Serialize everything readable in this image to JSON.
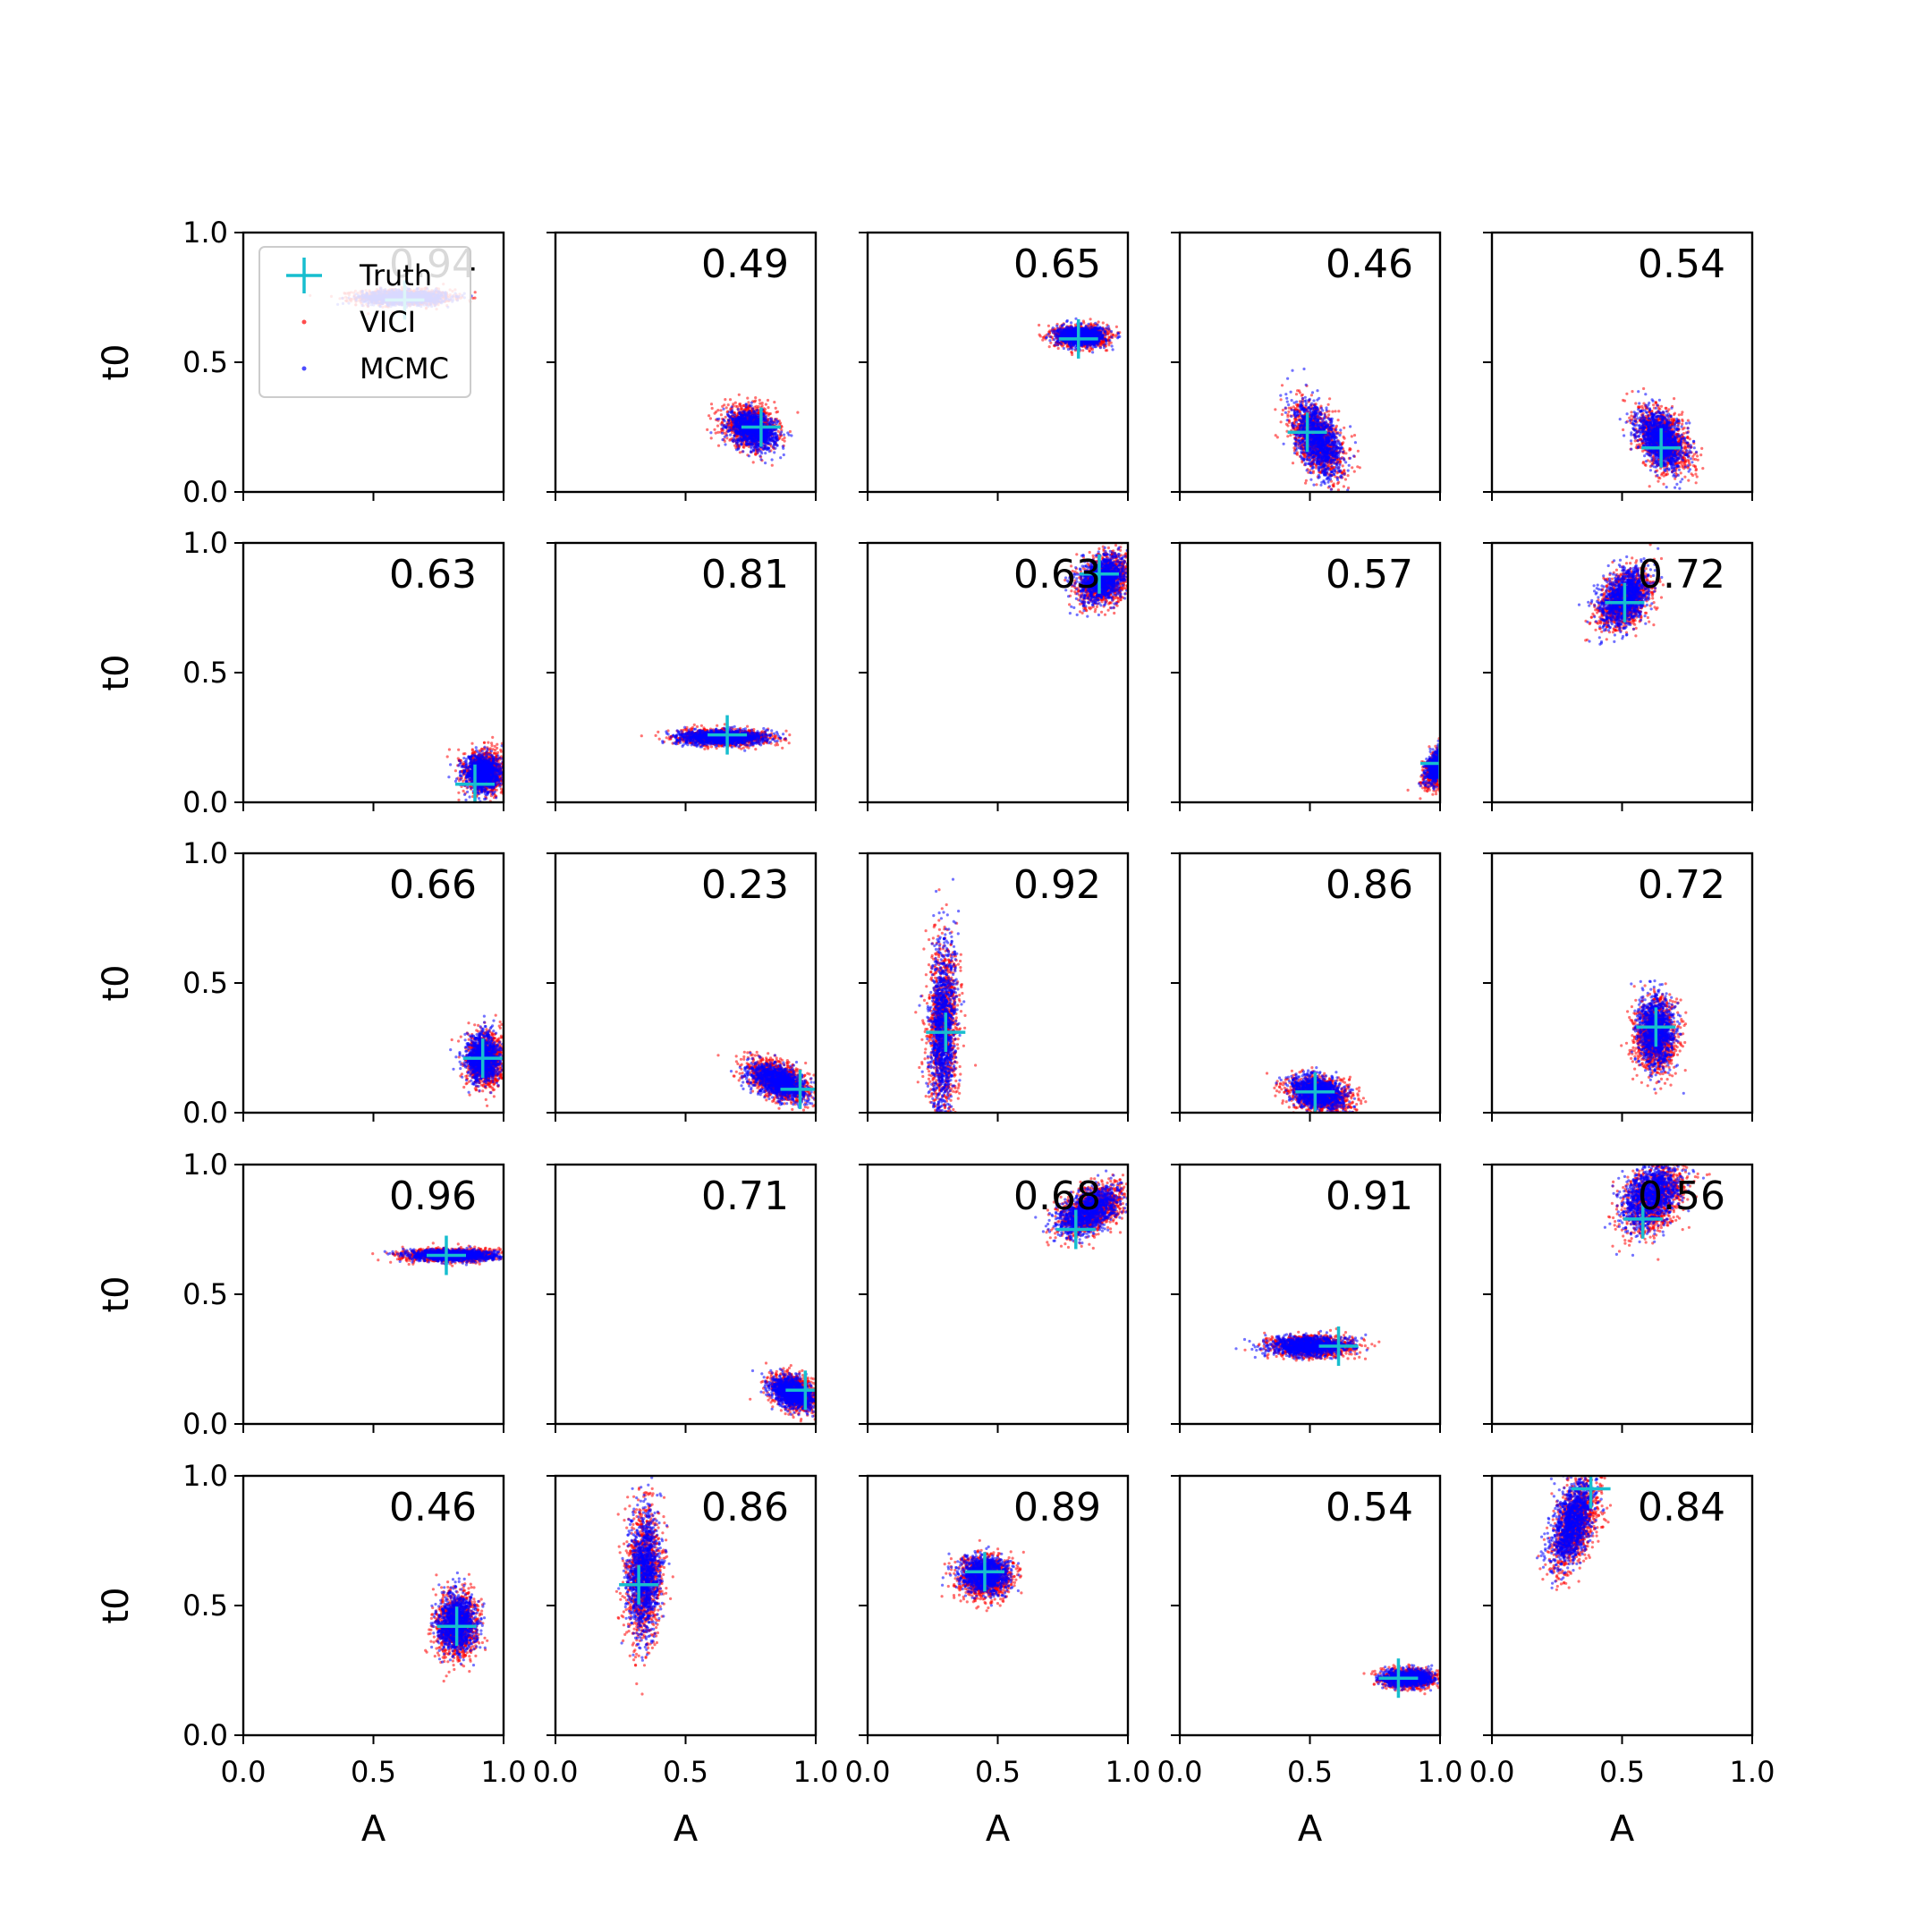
{
  "figure": {
    "xlabel": "A",
    "ylabel": "t0",
    "tick_labels": [
      "0.0",
      "0.5",
      "1.0"
    ],
    "legend": {
      "entries": [
        {
          "label": "Truth",
          "color": "#17becf",
          "marker": "plus"
        },
        {
          "label": "VICI",
          "color": "#ff0000",
          "marker": "dot"
        },
        {
          "label": "MCMC",
          "color": "#0000ff",
          "marker": "dot"
        }
      ]
    }
  },
  "chart_data": {
    "type": "scatter",
    "grid": false,
    "legend_placement": "upper-left of first panel",
    "xlim": [
      0,
      1
    ],
    "ylim": [
      0,
      1
    ],
    "colors": {
      "vici": "#ff0000",
      "mcmc": "#0000ff",
      "truth": "#17becf"
    },
    "panels": [
      {
        "label": "0.94",
        "truth": [
          0.62,
          0.74
        ],
        "vici": {
          "center": [
            0.62,
            0.75
          ],
          "spread": [
            0.09,
            0.015
          ],
          "rho": 0
        },
        "mcmc": {
          "center": [
            0.62,
            0.75
          ],
          "spread": [
            0.08,
            0.013
          ],
          "rho": 0
        }
      },
      {
        "label": "0.49",
        "truth": [
          0.79,
          0.25
        ],
        "vici": {
          "center": [
            0.75,
            0.25
          ],
          "spread": [
            0.05,
            0.04
          ],
          "rho": -0.2
        },
        "mcmc": {
          "center": [
            0.76,
            0.24
          ],
          "spread": [
            0.045,
            0.035
          ],
          "rho": -0.3
        }
      },
      {
        "label": "0.65",
        "truth": [
          0.81,
          0.59
        ],
        "vici": {
          "center": [
            0.82,
            0.6
          ],
          "spread": [
            0.05,
            0.02
          ],
          "rho": 0
        },
        "mcmc": {
          "center": [
            0.82,
            0.6
          ],
          "spread": [
            0.045,
            0.018
          ],
          "rho": 0
        }
      },
      {
        "label": "0.46",
        "truth": [
          0.49,
          0.23
        ],
        "vici": {
          "center": [
            0.53,
            0.2
          ],
          "spread": [
            0.05,
            0.07
          ],
          "rho": -0.5
        },
        "mcmc": {
          "center": [
            0.53,
            0.2
          ],
          "spread": [
            0.045,
            0.07
          ],
          "rho": -0.5
        }
      },
      {
        "label": "0.54",
        "truth": [
          0.65,
          0.17
        ],
        "vici": {
          "center": [
            0.66,
            0.2
          ],
          "spread": [
            0.05,
            0.06
          ],
          "rho": -0.4
        },
        "mcmc": {
          "center": [
            0.65,
            0.2
          ],
          "spread": [
            0.045,
            0.055
          ],
          "rho": -0.4
        }
      },
      {
        "label": "0.63",
        "truth": [
          0.89,
          0.07
        ],
        "vici": {
          "center": [
            0.93,
            0.12
          ],
          "spread": [
            0.04,
            0.04
          ],
          "rho": 0
        },
        "mcmc": {
          "center": [
            0.92,
            0.11
          ],
          "spread": [
            0.035,
            0.035
          ],
          "rho": 0
        }
      },
      {
        "label": "0.81",
        "truth": [
          0.66,
          0.26
        ],
        "vici": {
          "center": [
            0.65,
            0.25
          ],
          "spread": [
            0.09,
            0.015
          ],
          "rho": 0
        },
        "mcmc": {
          "center": [
            0.64,
            0.25
          ],
          "spread": [
            0.085,
            0.014
          ],
          "rho": 0
        }
      },
      {
        "label": "0.63",
        "truth": [
          0.89,
          0.88
        ],
        "vici": {
          "center": [
            0.91,
            0.86
          ],
          "spread": [
            0.05,
            0.05
          ],
          "rho": 0.3
        },
        "mcmc": {
          "center": [
            0.9,
            0.86
          ],
          "spread": [
            0.045,
            0.045
          ],
          "rho": 0.3
        }
      },
      {
        "label": "0.57",
        "truth": [
          1.0,
          0.15
        ],
        "vici": {
          "center": [
            1.0,
            0.14
          ],
          "spread": [
            0.03,
            0.04
          ],
          "rho": 0.5
        },
        "mcmc": {
          "center": [
            1.0,
            0.15
          ],
          "spread": [
            0.025,
            0.035
          ],
          "rho": 0.5
        }
      },
      {
        "label": "0.72",
        "truth": [
          0.51,
          0.77
        ],
        "vici": {
          "center": [
            0.51,
            0.78
          ],
          "spread": [
            0.05,
            0.055
          ],
          "rho": 0.4
        },
        "mcmc": {
          "center": [
            0.51,
            0.79
          ],
          "spread": [
            0.045,
            0.055
          ],
          "rho": 0.4
        }
      },
      {
        "label": "0.66",
        "truth": [
          0.92,
          0.21
        ],
        "vici": {
          "center": [
            0.93,
            0.2
          ],
          "spread": [
            0.035,
            0.05
          ],
          "rho": 0
        },
        "mcmc": {
          "center": [
            0.92,
            0.21
          ],
          "spread": [
            0.03,
            0.045
          ],
          "rho": 0
        }
      },
      {
        "label": "0.23",
        "truth": [
          0.94,
          0.09
        ],
        "vici": {
          "center": [
            0.86,
            0.12
          ],
          "spread": [
            0.06,
            0.04
          ],
          "rho": -0.5
        },
        "mcmc": {
          "center": [
            0.86,
            0.12
          ],
          "spread": [
            0.055,
            0.035
          ],
          "rho": -0.5
        }
      },
      {
        "label": "0.92",
        "truth": [
          0.3,
          0.31
        ],
        "vici": {
          "center": [
            0.29,
            0.33
          ],
          "spread": [
            0.03,
            0.17
          ],
          "rho": 0.1
        },
        "mcmc": {
          "center": [
            0.29,
            0.32
          ],
          "spread": [
            0.025,
            0.16
          ],
          "rho": 0.1
        }
      },
      {
        "label": "0.86",
        "truth": [
          0.52,
          0.08
        ],
        "vici": {
          "center": [
            0.54,
            0.07
          ],
          "spread": [
            0.06,
            0.035
          ],
          "rho": -0.3
        },
        "mcmc": {
          "center": [
            0.53,
            0.08
          ],
          "spread": [
            0.05,
            0.03
          ],
          "rho": -0.3
        }
      },
      {
        "label": "0.72",
        "truth": [
          0.63,
          0.33
        ],
        "vici": {
          "center": [
            0.63,
            0.3
          ],
          "spread": [
            0.04,
            0.07
          ],
          "rho": 0
        },
        "mcmc": {
          "center": [
            0.63,
            0.31
          ],
          "spread": [
            0.035,
            0.065
          ],
          "rho": 0
        }
      },
      {
        "label": "0.96",
        "truth": [
          0.78,
          0.65
        ],
        "vici": {
          "center": [
            0.8,
            0.65
          ],
          "spread": [
            0.09,
            0.012
          ],
          "rho": 0
        },
        "mcmc": {
          "center": [
            0.8,
            0.65
          ],
          "spread": [
            0.085,
            0.011
          ],
          "rho": 0
        }
      },
      {
        "label": "0.71",
        "truth": [
          0.96,
          0.13
        ],
        "vici": {
          "center": [
            0.92,
            0.12
          ],
          "spread": [
            0.045,
            0.035
          ],
          "rho": -0.4
        },
        "mcmc": {
          "center": [
            0.91,
            0.12
          ],
          "spread": [
            0.04,
            0.03
          ],
          "rho": -0.4
        }
      },
      {
        "label": "0.68",
        "truth": [
          0.8,
          0.75
        ],
        "vici": {
          "center": [
            0.86,
            0.82
          ],
          "spread": [
            0.06,
            0.05
          ],
          "rho": 0.5
        },
        "mcmc": {
          "center": [
            0.85,
            0.82
          ],
          "spread": [
            0.055,
            0.045
          ],
          "rho": 0.5
        }
      },
      {
        "label": "0.91",
        "truth": [
          0.61,
          0.3
        ],
        "vici": {
          "center": [
            0.51,
            0.3
          ],
          "spread": [
            0.08,
            0.02
          ],
          "rho": 0
        },
        "mcmc": {
          "center": [
            0.5,
            0.3
          ],
          "spread": [
            0.075,
            0.018
          ],
          "rho": 0
        }
      },
      {
        "label": "0.56",
        "truth": [
          0.58,
          0.79
        ],
        "vici": {
          "center": [
            0.62,
            0.87
          ],
          "spread": [
            0.06,
            0.07
          ],
          "rho": 0.4
        },
        "mcmc": {
          "center": [
            0.61,
            0.88
          ],
          "spread": [
            0.055,
            0.065
          ],
          "rho": 0.4
        }
      },
      {
        "label": "0.46",
        "truth": [
          0.82,
          0.42
        ],
        "vici": {
          "center": [
            0.82,
            0.42
          ],
          "spread": [
            0.04,
            0.06
          ],
          "rho": 0
        },
        "mcmc": {
          "center": [
            0.82,
            0.43
          ],
          "spread": [
            0.035,
            0.055
          ],
          "rho": 0
        }
      },
      {
        "label": "0.86",
        "truth": [
          0.32,
          0.58
        ],
        "vici": {
          "center": [
            0.34,
            0.62
          ],
          "spread": [
            0.035,
            0.13
          ],
          "rho": 0.1
        },
        "mcmc": {
          "center": [
            0.34,
            0.62
          ],
          "spread": [
            0.03,
            0.12
          ],
          "rho": 0.1
        }
      },
      {
        "label": "0.89",
        "truth": [
          0.45,
          0.63
        ],
        "vici": {
          "center": [
            0.45,
            0.61
          ],
          "spread": [
            0.05,
            0.04
          ],
          "rho": 0
        },
        "mcmc": {
          "center": [
            0.45,
            0.62
          ],
          "spread": [
            0.045,
            0.035
          ],
          "rho": 0
        }
      },
      {
        "label": "0.54",
        "truth": [
          0.84,
          0.22
        ],
        "vici": {
          "center": [
            0.88,
            0.22
          ],
          "spread": [
            0.05,
            0.018
          ],
          "rho": 0
        },
        "mcmc": {
          "center": [
            0.88,
            0.22
          ],
          "spread": [
            0.045,
            0.016
          ],
          "rho": 0
        }
      },
      {
        "label": "0.84",
        "truth": [
          0.38,
          0.95
        ],
        "vici": {
          "center": [
            0.32,
            0.82
          ],
          "spread": [
            0.045,
            0.09
          ],
          "rho": 0.5
        },
        "mcmc": {
          "center": [
            0.31,
            0.82
          ],
          "spread": [
            0.04,
            0.085
          ],
          "rho": 0.5
        }
      }
    ]
  }
}
